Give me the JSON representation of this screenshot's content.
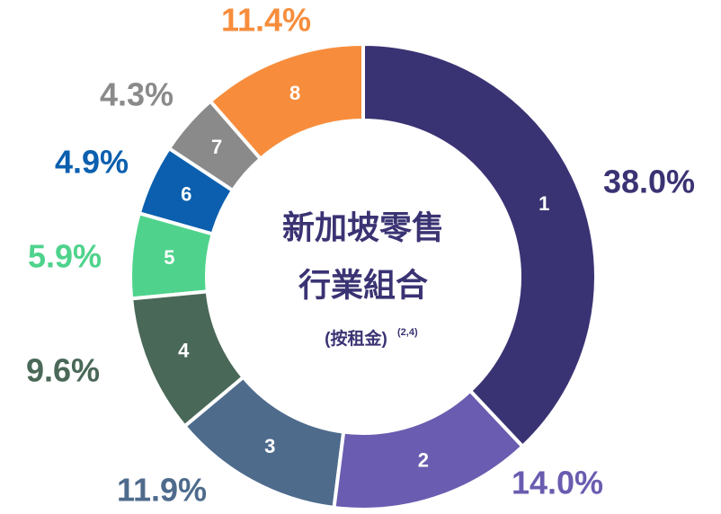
{
  "chart_data": {
    "type": "donut",
    "title": [
      "新加坡零售",
      "行業組合"
    ],
    "subtitle": "(按租金)",
    "subtitle_note": "(2,4)",
    "categories": [
      "1",
      "2",
      "3",
      "4",
      "5",
      "6",
      "7",
      "8"
    ],
    "values": [
      38.0,
      14.0,
      11.9,
      9.6,
      5.9,
      4.9,
      4.3,
      11.4
    ],
    "value_labels": [
      "38.0%",
      "14.0%",
      "11.9%",
      "9.6%",
      "5.9%",
      "4.9%",
      "4.3%",
      "11.4%"
    ],
    "colors": [
      "#3a3373",
      "#6a5cb0",
      "#4e6b8c",
      "#4a6858",
      "#4fd38c",
      "#0b5fae",
      "#8b8a8a",
      "#f78d3c"
    ]
  }
}
